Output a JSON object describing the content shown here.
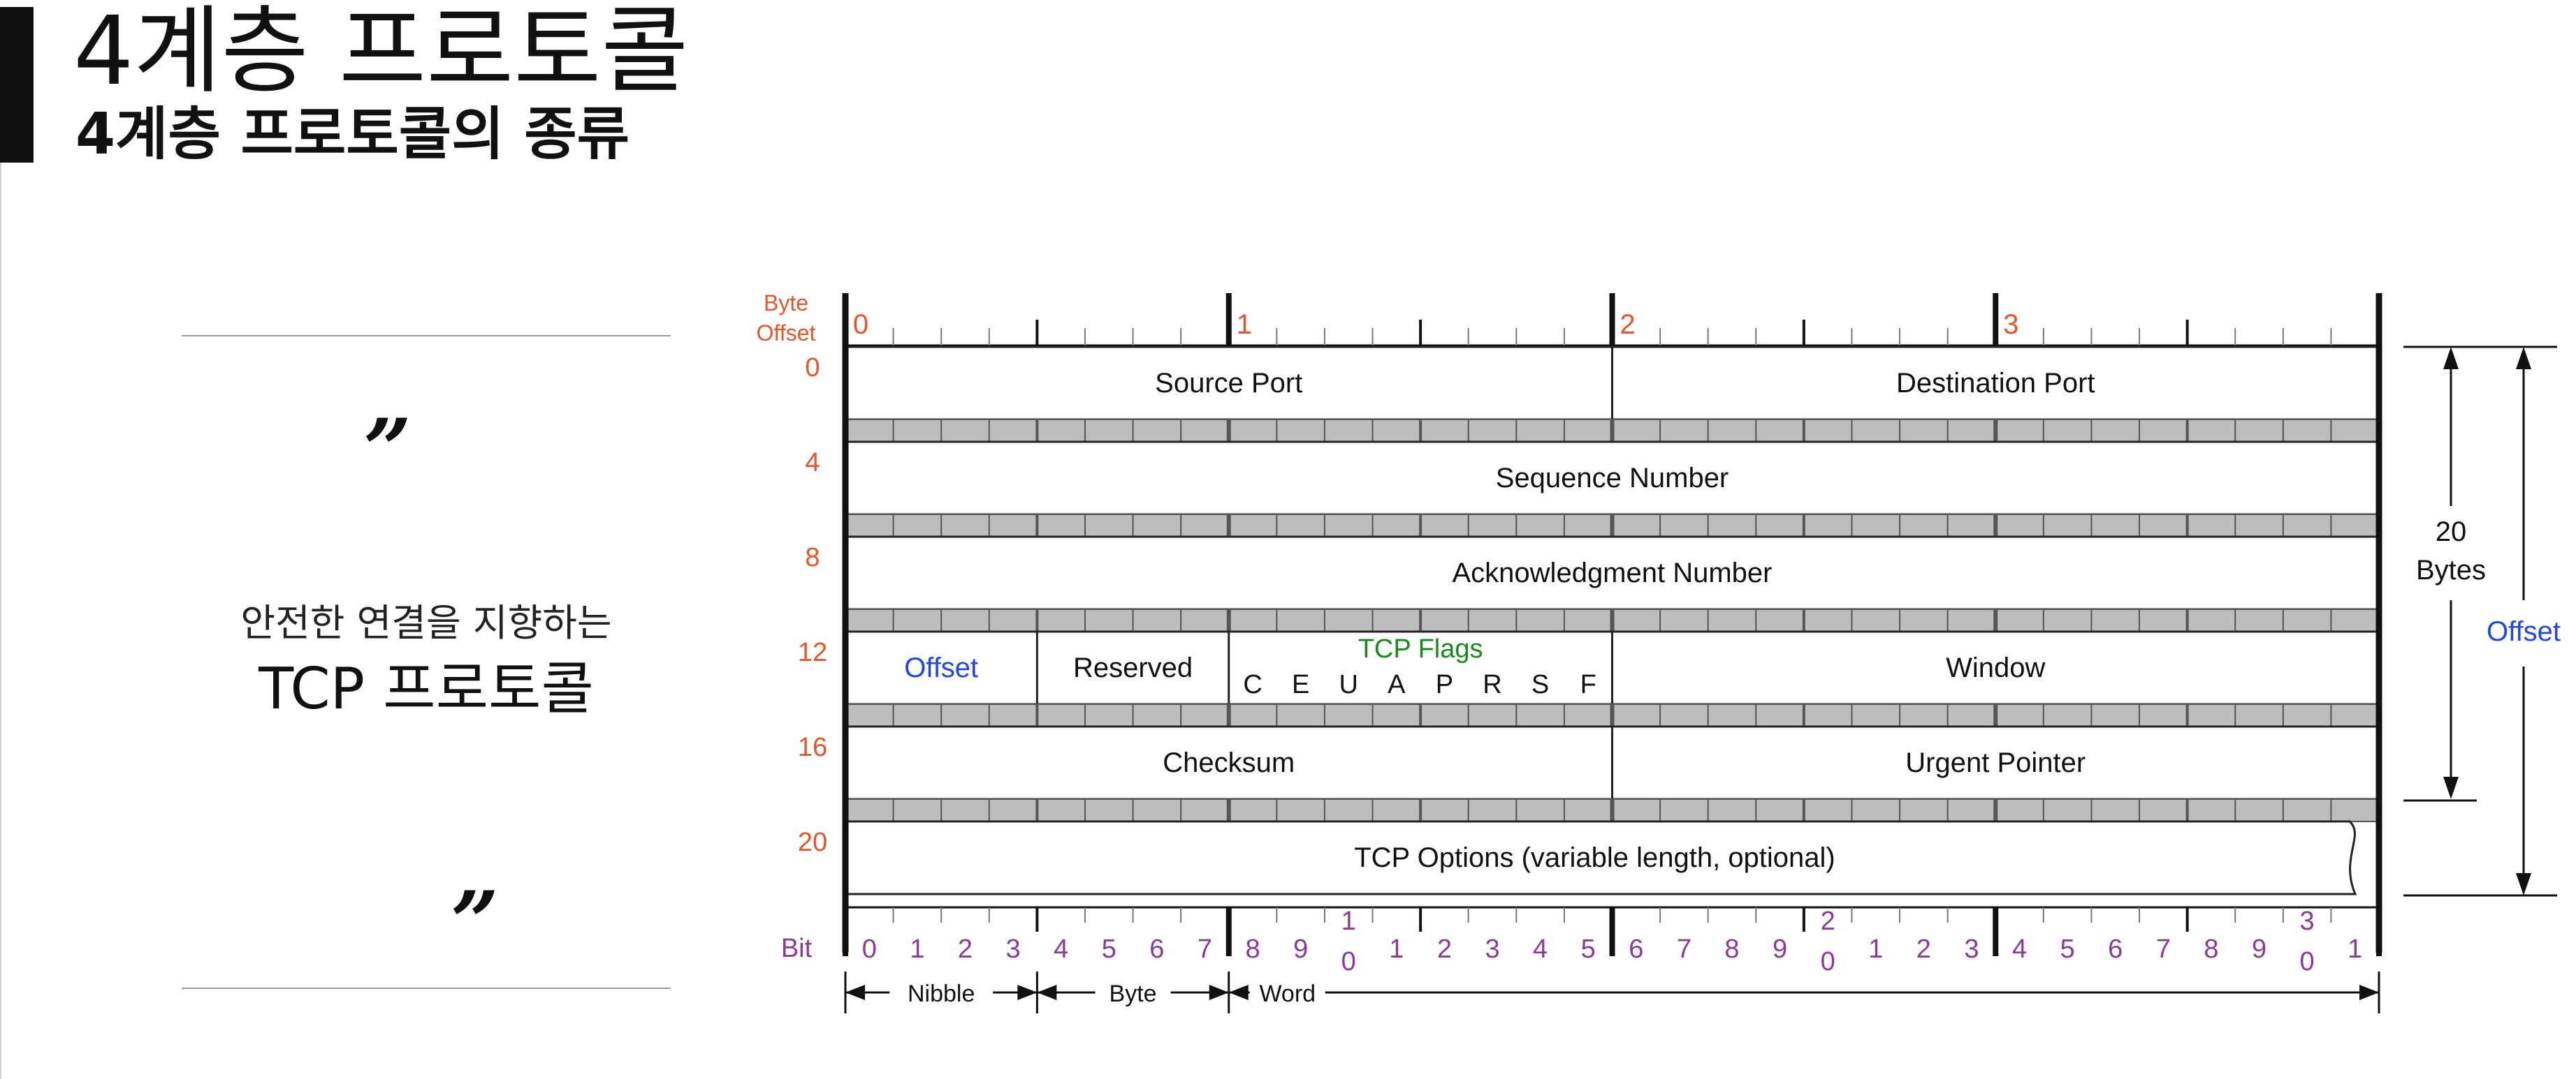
{
  "header": {
    "title": "4계층 프로토콜",
    "subtitle": "4계층 프로토콜의 종류"
  },
  "quote": {
    "open_mark": "”",
    "close_mark": "”",
    "line1": "안전한 연결을 지향하는",
    "line2": "TCP 프로토콜"
  },
  "diagram": {
    "byte_offset_label": [
      "Byte",
      "Offset"
    ],
    "byte_numbers": [
      "0",
      "1",
      "2",
      "3"
    ],
    "row_offsets": [
      "0",
      "4",
      "8",
      "12",
      "16",
      "20"
    ],
    "rows": [
      [
        {
          "label": "Source Port",
          "span": [
            0,
            16
          ]
        },
        {
          "label": "Destination Port",
          "span": [
            16,
            32
          ]
        }
      ],
      [
        {
          "label": "Sequence Number",
          "span": [
            0,
            32
          ]
        }
      ],
      [
        {
          "label": "Acknowledgment Number",
          "span": [
            0,
            32
          ]
        }
      ],
      [
        {
          "label": "Offset",
          "span": [
            0,
            4
          ],
          "color": "blue"
        },
        {
          "label": "Reserved",
          "span": [
            4,
            8
          ]
        },
        {
          "label": "TCP Flags",
          "span": [
            8,
            16
          ],
          "color": "green",
          "flags": [
            "C",
            "E",
            "U",
            "A",
            "P",
            "R",
            "S",
            "F"
          ]
        },
        {
          "label": "Window",
          "span": [
            16,
            32
          ]
        }
      ],
      [
        {
          "label": "Checksum",
          "span": [
            0,
            16
          ]
        },
        {
          "label": "Urgent Pointer",
          "span": [
            16,
            32
          ]
        }
      ],
      [
        {
          "label": "TCP Options (variable length, optional)",
          "span": [
            0,
            32
          ]
        }
      ]
    ],
    "bit_label": "Bit",
    "bit_numbers": [
      "0",
      "1",
      "2",
      "3",
      "4",
      "5",
      "6",
      "7",
      "8",
      "9",
      "1\n0",
      "1",
      "2",
      "3",
      "4",
      "5",
      "6",
      "7",
      "8",
      "9",
      "2\n0",
      "1",
      "2",
      "3",
      "4",
      "5",
      "6",
      "7",
      "8",
      "9",
      "3\n0",
      "1"
    ],
    "units": [
      {
        "label": "Nibble",
        "bits": 4
      },
      {
        "label": "Byte",
        "bits": 8
      },
      {
        "label": "Word",
        "bits": 32
      }
    ],
    "size_label": [
      "20",
      "Bytes"
    ],
    "offset_label": "Offset",
    "colors": {
      "byte_offset": "#e8552a",
      "bit": "#8b3a9b",
      "blue": "#2047e6",
      "green": "#1a8a1a",
      "separator": "#9a9a9a"
    }
  }
}
